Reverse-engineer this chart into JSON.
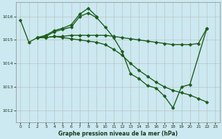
{
  "title": "Graphe pression niveau de la mer (hPa)",
  "background_color": "#cce8f0",
  "grid_color": "#b0b0b0",
  "line_color": "#1a5c1a",
  "xlim": [
    -0.5,
    23.5
  ],
  "ylim": [
    1011.5,
    1016.6
  ],
  "yticks": [
    1012,
    1013,
    1014,
    1015,
    1016
  ],
  "xticks": [
    0,
    1,
    2,
    3,
    4,
    5,
    6,
    7,
    8,
    9,
    10,
    11,
    12,
    13,
    14,
    15,
    16,
    17,
    18,
    19,
    20,
    21,
    22,
    23
  ],
  "series": [
    {
      "x": [
        0,
        1,
        2,
        3,
        4,
        5,
        6,
        7,
        8,
        9,
        10,
        11,
        12,
        13,
        14,
        15,
        16,
        17,
        18,
        19,
        20,
        21,
        22
      ],
      "y": [
        1015.85,
        1014.9,
        1015.1,
        1015.1,
        1015.15,
        1015.1,
        1015.05,
        1015.0,
        1014.95,
        1014.9,
        1014.8,
        1014.6,
        1014.35,
        1014.0,
        1013.7,
        1013.45,
        1013.2,
        1013.0,
        1012.85,
        1012.75,
        1012.65,
        1012.5,
        1012.35
      ]
    },
    {
      "x": [
        2,
        3,
        4,
        5,
        6,
        7,
        8,
        9,
        10,
        11,
        12,
        13,
        14,
        15,
        16,
        17,
        18,
        19,
        20,
        21,
        22
      ],
      "y": [
        1015.1,
        1015.15,
        1015.35,
        1015.45,
        1015.55,
        1016.0,
        1016.15,
        1015.95,
        1015.55,
        1015.1,
        1014.5,
        1013.55,
        1013.35,
        1013.05,
        1012.95,
        1012.6,
        1012.1,
        1013.0,
        1013.1,
        null,
        1015.5
      ]
    },
    {
      "x": [
        2,
        3,
        4,
        5,
        6,
        7,
        8,
        9
      ],
      "y": [
        1015.1,
        1015.2,
        1015.4,
        1015.5,
        1015.65,
        1016.1,
        1016.35,
        1016.0
      ]
    },
    {
      "x": [
        2,
        3,
        4,
        5,
        6,
        7,
        8,
        9,
        10,
        11,
        12,
        13,
        14,
        15,
        16,
        17,
        18,
        19,
        20,
        21,
        22
      ],
      "y": [
        1015.1,
        1015.1,
        1015.15,
        1015.15,
        1015.2,
        1015.2,
        1015.2,
        1015.2,
        1015.2,
        1015.15,
        1015.1,
        1015.05,
        1015.0,
        1014.95,
        1014.9,
        1014.85,
        1014.8,
        1014.8,
        1014.8,
        1014.85,
        1015.5
      ]
    }
  ],
  "marker": "D",
  "markersize": 2.5,
  "linewidth": 1.0
}
